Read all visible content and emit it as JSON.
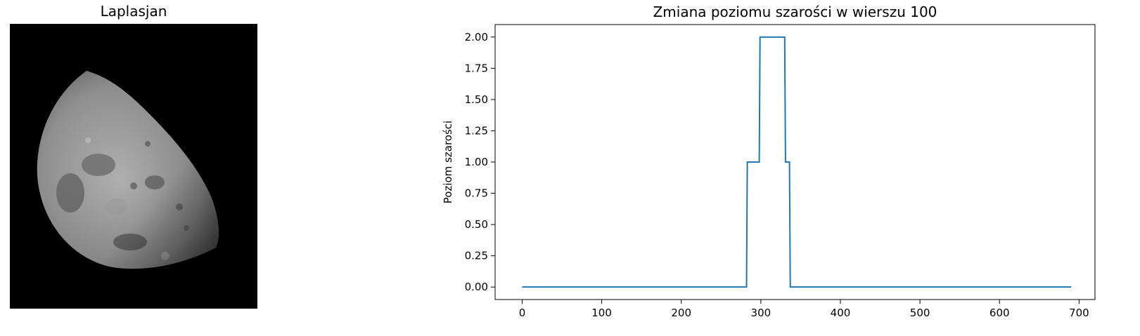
{
  "left_panel": {
    "title": "Laplasjan"
  },
  "chart_data": {
    "type": "line",
    "title": "Zmiana poziomu szarości w wierszu 100",
    "xlabel": "",
    "ylabel": "Poziom szarości",
    "xlim": [
      -34,
      720
    ],
    "ylim": [
      -0.1,
      2.1
    ],
    "xticks": [
      0,
      100,
      200,
      300,
      400,
      500,
      600,
      700
    ],
    "yticks": [
      0.0,
      0.25,
      0.5,
      0.75,
      1.0,
      1.25,
      1.5,
      1.75,
      2.0
    ],
    "ytick_labels": [
      "0.00",
      "0.25",
      "0.50",
      "0.75",
      "1.00",
      "1.25",
      "1.50",
      "1.75",
      "2.00"
    ],
    "grid": false,
    "series": [
      {
        "color": "#1f77b4",
        "x": [
          0,
          282,
          283,
          284,
          298,
          299,
          300,
          301,
          330,
          331,
          332,
          336,
          337,
          338,
          690
        ],
        "y": [
          0,
          0,
          1,
          1,
          1,
          2,
          2,
          2,
          2,
          1,
          1,
          1,
          0,
          0,
          0
        ]
      }
    ]
  }
}
